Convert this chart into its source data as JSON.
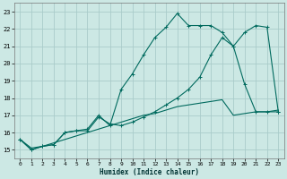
{
  "title": "",
  "xlabel": "Humidex (Indice chaleur)",
  "ylabel": "",
  "xlim": [
    -0.5,
    23.5
  ],
  "ylim": [
    14.5,
    23.5
  ],
  "xticks": [
    0,
    1,
    2,
    3,
    4,
    5,
    6,
    7,
    8,
    9,
    10,
    11,
    12,
    13,
    14,
    15,
    16,
    17,
    18,
    19,
    20,
    21,
    22,
    23
  ],
  "yticks": [
    15,
    16,
    17,
    18,
    19,
    20,
    21,
    22,
    23
  ],
  "bg_color": "#cce8e4",
  "grid_color": "#aaccca",
  "line_color": "#006a5e",
  "line1_x": [
    0,
    1,
    2,
    3,
    4,
    5,
    6,
    7,
    8,
    9,
    10,
    11,
    12,
    13,
    14,
    15,
    16,
    17,
    18,
    19,
    20,
    21,
    22,
    23
  ],
  "line1_y": [
    15.6,
    15.0,
    15.2,
    15.3,
    16.0,
    16.1,
    16.1,
    16.9,
    16.5,
    16.4,
    16.6,
    16.9,
    17.2,
    17.6,
    18.0,
    18.5,
    19.2,
    20.5,
    21.5,
    21.0,
    21.8,
    22.2,
    22.1,
    17.2
  ],
  "line2_x": [
    0,
    1,
    2,
    3,
    4,
    5,
    6,
    7,
    8,
    9,
    10,
    11,
    12,
    13,
    14,
    15,
    16,
    17,
    18,
    19,
    20,
    21,
    22,
    23
  ],
  "line2_y": [
    15.6,
    15.0,
    15.2,
    15.3,
    16.0,
    16.1,
    16.2,
    17.0,
    16.4,
    18.5,
    19.4,
    20.5,
    21.5,
    22.1,
    22.9,
    22.2,
    22.2,
    22.2,
    21.8,
    21.0,
    18.8,
    17.2,
    17.2,
    17.2
  ],
  "line3_x": [
    0,
    1,
    2,
    3,
    4,
    5,
    6,
    7,
    8,
    9,
    10,
    11,
    12,
    13,
    14,
    15,
    16,
    17,
    18,
    19,
    20,
    21,
    22,
    23
  ],
  "line3_y": [
    15.6,
    15.1,
    15.2,
    15.4,
    15.6,
    15.8,
    16.0,
    16.2,
    16.4,
    16.6,
    16.8,
    17.0,
    17.1,
    17.3,
    17.5,
    17.6,
    17.7,
    17.8,
    17.9,
    17.0,
    17.1,
    17.2,
    17.2,
    17.3
  ]
}
